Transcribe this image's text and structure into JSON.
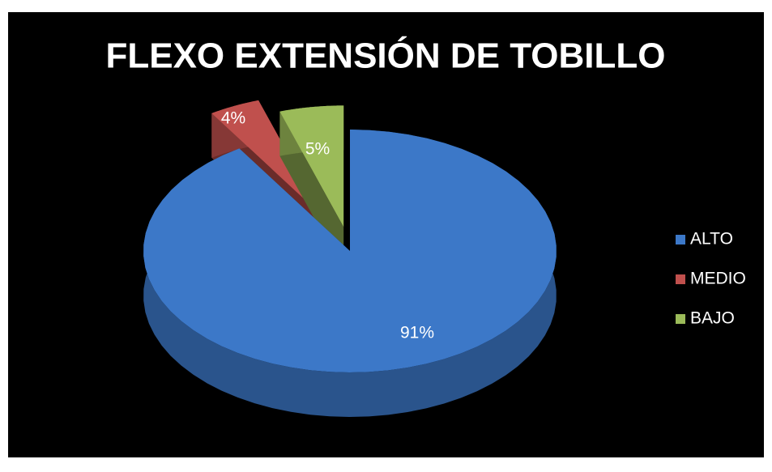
{
  "chart_data": {
    "type": "pie",
    "title": "FLEXO EXTENSIÓN DE TOBILLO",
    "categories": [
      "ALTO",
      "MEDIO",
      "BAJO"
    ],
    "values": [
      91,
      4,
      5
    ],
    "value_labels": [
      "91%",
      "4%",
      "5%"
    ],
    "colors": [
      "#3c78c8",
      "#c0504d",
      "#9bbb59"
    ],
    "legend": "right"
  }
}
